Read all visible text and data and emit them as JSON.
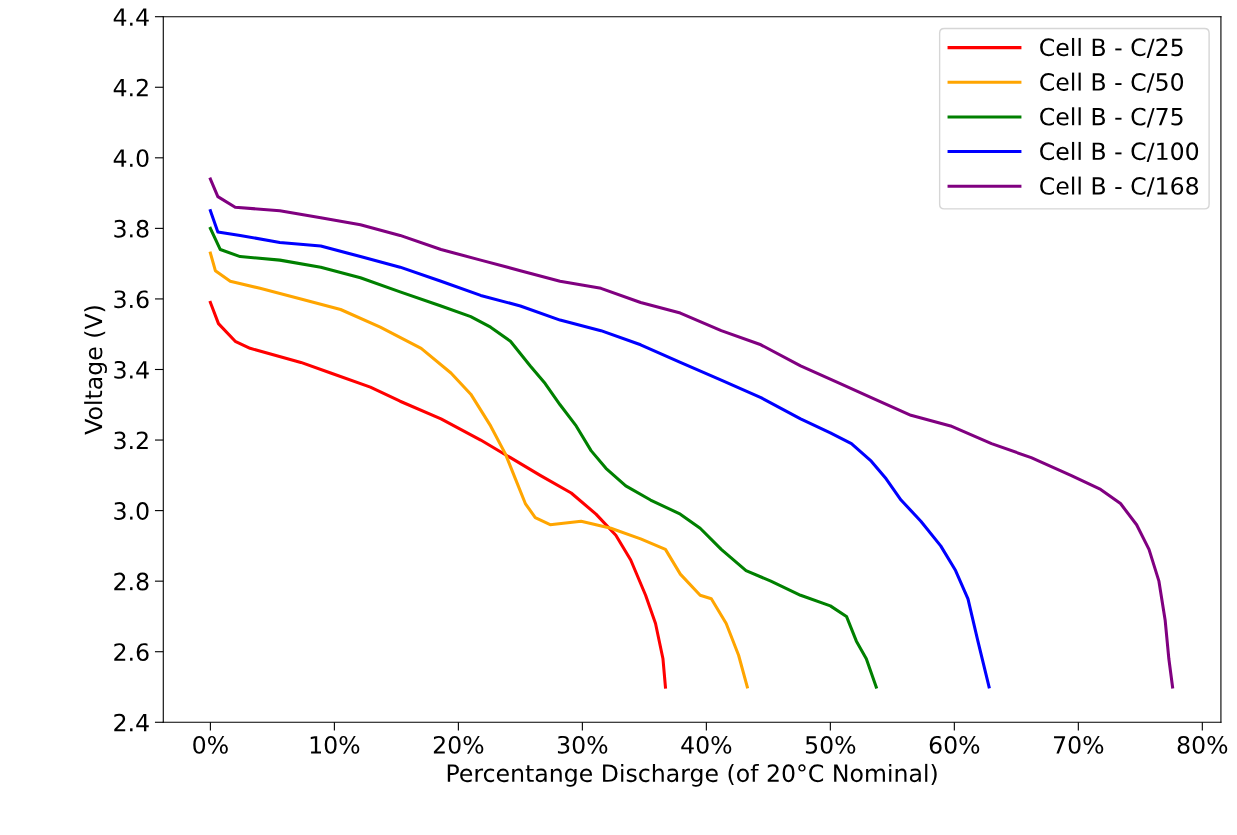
{
  "chart_data": {
    "type": "line",
    "xlabel": "Percentange Discharge (of 20°C Nominal)",
    "ylabel": "Voltage (V)",
    "xlim": [
      -3.8,
      81.5
    ],
    "ylim": [
      2.4,
      4.4
    ],
    "xticks": [
      {
        "value": 0,
        "label": "0%"
      },
      {
        "value": 10,
        "label": "10%"
      },
      {
        "value": 20,
        "label": "20%"
      },
      {
        "value": 30,
        "label": "30%"
      },
      {
        "value": 40,
        "label": "40%"
      },
      {
        "value": 50,
        "label": "50%"
      },
      {
        "value": 60,
        "label": "60%"
      },
      {
        "value": 70,
        "label": "70%"
      },
      {
        "value": 80,
        "label": "80%"
      }
    ],
    "yticks": [
      2.4,
      2.6,
      2.8,
      {
        "value": 3,
        "label": "3.0"
      },
      3.2,
      3.4,
      3.6,
      3.8,
      {
        "value": 4,
        "label": "4.0"
      },
      4.2,
      4.4
    ],
    "grid": false,
    "legend": "top right",
    "line_style": "solid",
    "marker": "none",
    "series": [
      {
        "name": "Cell B - C/25",
        "color": "#ff0000",
        "x": [
          0,
          0.65,
          2,
          3.2,
          7.3,
          9.7,
          12.9,
          15.3,
          18.6,
          21.8,
          24.2,
          26.6,
          29.1,
          31.1,
          32.7,
          33.9,
          35.1,
          35.9,
          36.5,
          36.7
        ],
        "values": [
          3.59,
          3.53,
          3.48,
          3.46,
          3.42,
          3.39,
          3.35,
          3.31,
          3.26,
          3.2,
          3.15,
          3.1,
          3.05,
          2.99,
          2.93,
          2.86,
          2.76,
          2.68,
          2.58,
          2.5
        ]
      },
      {
        "name": "Cell B - C/50",
        "color": "#ffa500",
        "x": [
          0,
          0.4,
          1.6,
          4,
          7.3,
          10.5,
          13.7,
          17,
          19.4,
          21,
          22.6,
          23.8,
          24.6,
          25.4,
          26.2,
          27.4,
          29.9,
          32.3,
          34.7,
          36.7,
          37.9,
          39.5,
          40.4,
          41.6,
          42.6,
          43.3
        ],
        "values": [
          3.73,
          3.68,
          3.65,
          3.63,
          3.6,
          3.57,
          3.52,
          3.46,
          3.39,
          3.33,
          3.24,
          3.16,
          3.09,
          3.02,
          2.98,
          2.96,
          2.97,
          2.95,
          2.92,
          2.89,
          2.82,
          2.76,
          2.75,
          2.68,
          2.59,
          2.5
        ]
      },
      {
        "name": "Cell B - C/75",
        "color": "#008000",
        "x": [
          0,
          0.8,
          2.4,
          5.6,
          8.9,
          12.1,
          15.3,
          18.6,
          21,
          22.6,
          24.2,
          25.8,
          27,
          28.2,
          29.5,
          30.7,
          31.9,
          33.5,
          35.5,
          37.9,
          39.5,
          41.2,
          43.2,
          45.2,
          47.6,
          50,
          51.3,
          52.1,
          52.9,
          53.7
        ],
        "values": [
          3.8,
          3.74,
          3.72,
          3.71,
          3.69,
          3.66,
          3.62,
          3.58,
          3.55,
          3.52,
          3.48,
          3.41,
          3.36,
          3.3,
          3.24,
          3.17,
          3.12,
          3.07,
          3.03,
          2.99,
          2.95,
          2.89,
          2.83,
          2.8,
          2.76,
          2.73,
          2.7,
          2.63,
          2.58,
          2.5
        ]
      },
      {
        "name": "Cell B - C/100",
        "color": "#0000ff",
        "x": [
          0,
          0.6,
          2.4,
          5.6,
          8.9,
          12.1,
          15.3,
          18.6,
          21.8,
          25,
          28.2,
          31.5,
          34.7,
          37.9,
          41.2,
          44.4,
          47.6,
          50,
          51.7,
          53.3,
          54.5,
          55.7,
          57.3,
          58.9,
          60.1,
          61.1,
          61.9,
          62.8
        ],
        "values": [
          3.85,
          3.79,
          3.78,
          3.76,
          3.75,
          3.72,
          3.69,
          3.65,
          3.61,
          3.58,
          3.54,
          3.51,
          3.47,
          3.42,
          3.37,
          3.32,
          3.26,
          3.22,
          3.19,
          3.14,
          3.09,
          3.03,
          2.97,
          2.9,
          2.83,
          2.75,
          2.63,
          2.5
        ]
      },
      {
        "name": "Cell B - C/168",
        "color": "#800080",
        "x": [
          0,
          0.6,
          2,
          5.6,
          8.9,
          12.1,
          15.3,
          18.6,
          21.8,
          25,
          28.2,
          31.5,
          34.7,
          37.9,
          41.2,
          44.4,
          47.6,
          50.8,
          53.3,
          56.5,
          59.7,
          63,
          66.2,
          69.4,
          71.8,
          73.4,
          74.7,
          75.7,
          76.5,
          77,
          77.3,
          77.6
        ],
        "values": [
          3.94,
          3.89,
          3.86,
          3.85,
          3.83,
          3.81,
          3.78,
          3.74,
          3.71,
          3.68,
          3.65,
          3.63,
          3.59,
          3.56,
          3.51,
          3.47,
          3.41,
          3.36,
          3.32,
          3.27,
          3.24,
          3.19,
          3.15,
          3.1,
          3.06,
          3.02,
          2.96,
          2.89,
          2.8,
          2.69,
          2.58,
          2.5
        ]
      }
    ]
  }
}
